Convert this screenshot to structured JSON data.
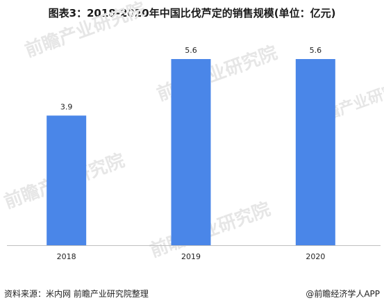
{
  "title": "图表3：2018-2020年中国比伐芦定的销售规模(单位：亿元)",
  "source": "资料来源：米内网 前瞻产业研究院整理",
  "brand": "@前瞻经济学人APP",
  "watermark": "前瞻产业研究院",
  "colors": {
    "bar": "#4a86e8",
    "axis": "#bfbfbf",
    "text": "#222222"
  },
  "chart_data": {
    "type": "bar",
    "categories": [
      "2018",
      "2019",
      "2020"
    ],
    "values": [
      3.9,
      5.6,
      5.6
    ],
    "data_labels": [
      "3.9",
      "5.6",
      "5.6"
    ],
    "title": "图表3：2018-2020年中国比伐芦定的销售规模(单位：亿元)",
    "xlabel": "",
    "ylabel": "",
    "ylim": [
      0,
      6.6
    ],
    "grid": false,
    "legend": "none"
  }
}
